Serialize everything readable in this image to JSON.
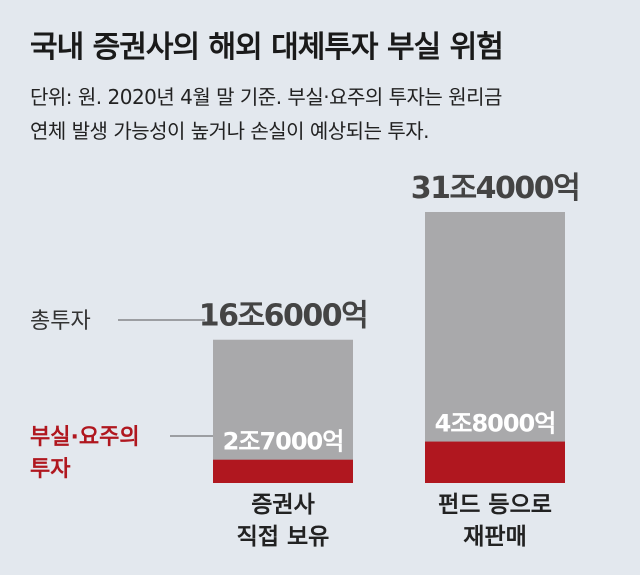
{
  "title": "국내 증권사의 해외 대체투자 부실 위험",
  "subtitle_lines": [
    "단위: 원. 2020년 4월 말 기준. 부실·요주의 투자는 원리금",
    "연체 발생 가능성이 높거나 손실이 예상되는 투자."
  ],
  "colors": {
    "total": "#a9a9ab",
    "bad": "#b0171f",
    "background": "#e3e8ee"
  },
  "chart_data": {
    "type": "bar",
    "title": "국내 증권사의 해외 대체투자 부실 위험",
    "unit": "원",
    "categories": [
      [
        "증권사",
        "직접 보유"
      ],
      [
        "펀드 등으로",
        "재판매"
      ]
    ],
    "series": [
      {
        "name": "총투자",
        "legend_lines": [
          "총투자"
        ],
        "values": [
          166000,
          314000
        ],
        "value_labels": [
          "16조6000억",
          "31조4000억"
        ]
      },
      {
        "name": "부실·요주의 투자",
        "legend_lines": [
          "부실·요주의",
          "투자"
        ],
        "values": [
          27000,
          48000
        ],
        "value_labels": [
          "2조7000억",
          "4조8000억"
        ]
      }
    ],
    "value_unit": "억원",
    "ylim": [
      0,
      314000
    ],
    "grid": false,
    "legend": "left"
  }
}
